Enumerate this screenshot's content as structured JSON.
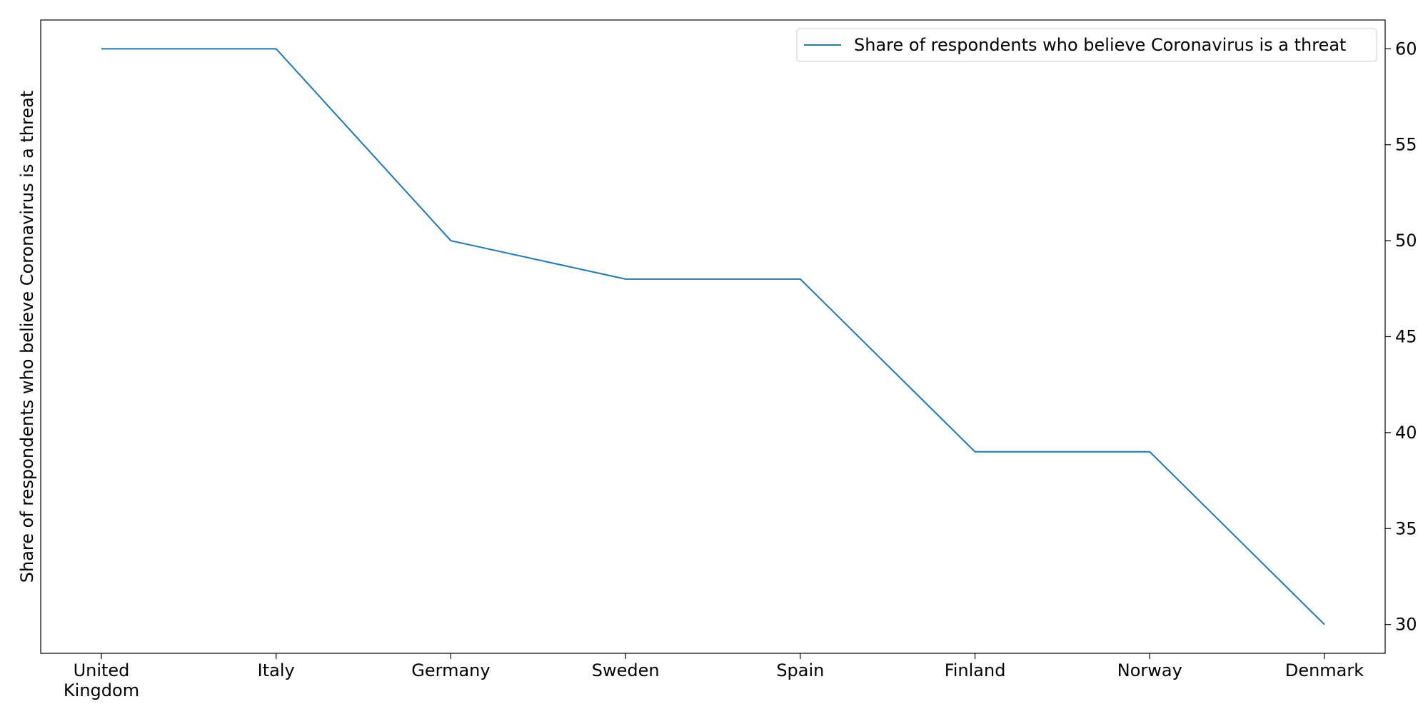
{
  "chart_data": {
    "type": "line",
    "categories": [
      "United Kingdom",
      "Italy",
      "Germany",
      "Sweden",
      "Spain",
      "Finland",
      "Norway",
      "Denmark"
    ],
    "series": [
      {
        "name": "Share of respondents who believe Coronavirus is a threat",
        "values": [
          60,
          60,
          50,
          48,
          48,
          39,
          39,
          30
        ],
        "color": "#1f77b4"
      }
    ],
    "xlabel": "",
    "ylabel": "Share of respondents who believe Coronavirus is a threat",
    "y_axis_side": "right",
    "ylim": [
      28.5,
      61.5
    ],
    "yticks": [
      30,
      35,
      40,
      45,
      50,
      55,
      60
    ],
    "grid": false,
    "legend_position": "top-right"
  }
}
